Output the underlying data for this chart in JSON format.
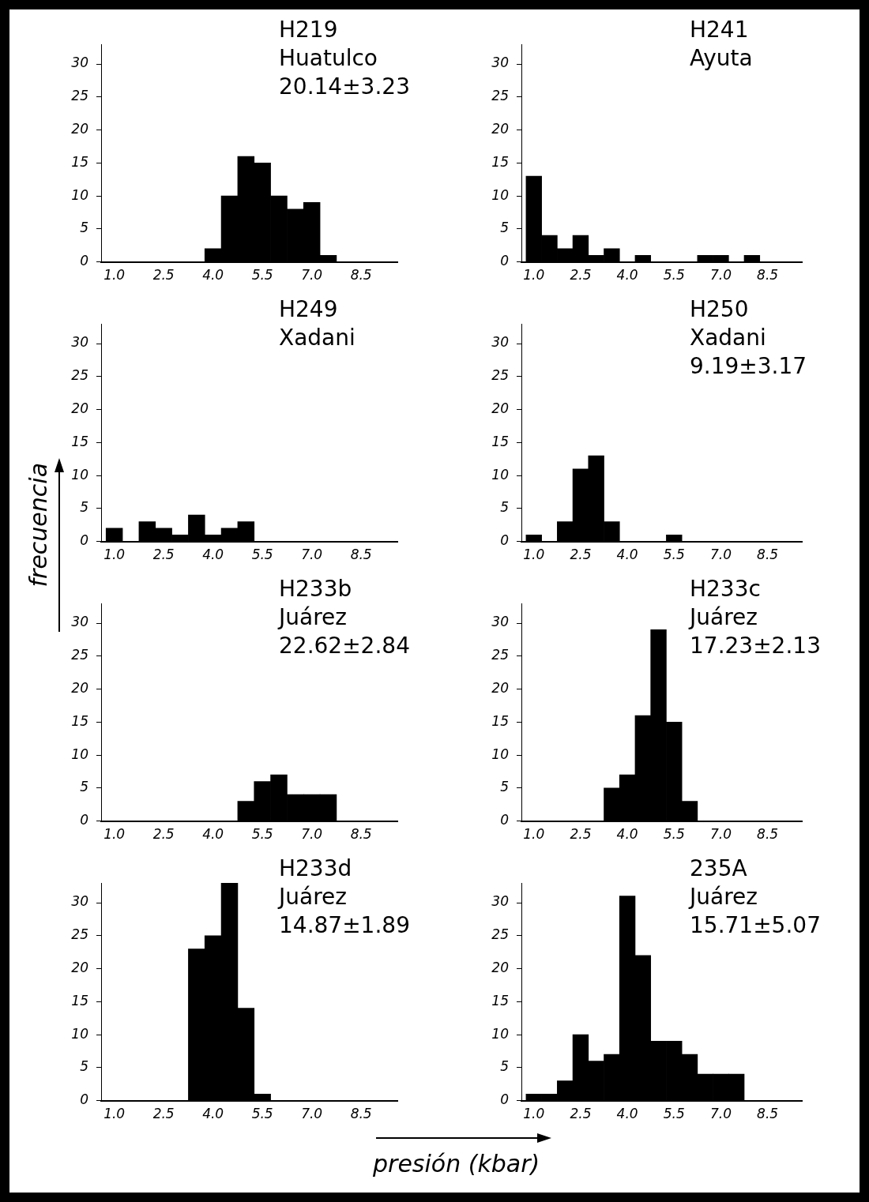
{
  "chart_data": [
    {
      "type": "histogram",
      "annotations": [
        "H219",
        "Huatulco",
        "20.14±3.23"
      ],
      "bins": [
        0.75,
        1.25,
        1.75,
        2.25,
        2.75,
        3.25,
        3.75,
        4.25,
        4.75,
        5.25,
        5.75,
        6.25,
        6.75,
        7.25,
        7.75,
        8.25,
        8.75
      ],
      "values": [
        0,
        0,
        0,
        0,
        0,
        0,
        2,
        10,
        16,
        15,
        10,
        8,
        9,
        1,
        0,
        0
      ],
      "color": "#000000",
      "xlim": [
        0.6,
        9.6
      ],
      "ylim": [
        0,
        33
      ],
      "xticks": [
        {
          "value": 1,
          "label": "1.0"
        },
        {
          "value": 2.5,
          "label": "2.5"
        },
        {
          "value": 4,
          "label": "4.0"
        },
        {
          "value": 5.5,
          "label": "5.5"
        },
        {
          "value": 7,
          "label": "7.0"
        },
        {
          "value": 8.5,
          "label": "8.5"
        }
      ],
      "yticks": [
        0,
        5,
        10,
        15,
        20,
        25,
        30
      ]
    },
    {
      "type": "histogram",
      "annotations": [
        "H241",
        "Ayuta"
      ],
      "bins": [
        0.75,
        1.25,
        1.75,
        2.25,
        2.75,
        3.25,
        3.75,
        4.25,
        4.75,
        5.25,
        5.75,
        6.25,
        6.75,
        7.25,
        7.75,
        8.25,
        8.75
      ],
      "values": [
        13,
        4,
        2,
        4,
        1,
        2,
        0,
        1,
        0,
        0,
        0,
        1,
        1,
        0,
        1,
        0
      ],
      "color": "#000000",
      "xlim": [
        0.6,
        9.6
      ],
      "ylim": [
        0,
        33
      ],
      "xticks": [
        {
          "value": 1,
          "label": "1.0"
        },
        {
          "value": 2.5,
          "label": "2.5"
        },
        {
          "value": 4,
          "label": "4.0"
        },
        {
          "value": 5.5,
          "label": "5.5"
        },
        {
          "value": 7,
          "label": "7.0"
        },
        {
          "value": 8.5,
          "label": "8.5"
        }
      ],
      "yticks": [
        0,
        5,
        10,
        15,
        20,
        25,
        30
      ]
    },
    {
      "type": "histogram",
      "annotations": [
        "H249",
        "Xadani"
      ],
      "ylabel": "frecuencia",
      "bins": [
        0.75,
        1.25,
        1.75,
        2.25,
        2.75,
        3.25,
        3.75,
        4.25,
        4.75,
        5.25,
        5.75,
        6.25,
        6.75,
        7.25,
        7.75,
        8.25,
        8.75
      ],
      "values": [
        2,
        0,
        3,
        2,
        1,
        4,
        1,
        2,
        3,
        0,
        0,
        0,
        0,
        0,
        0,
        0
      ],
      "color": "#000000",
      "xlim": [
        0.6,
        9.6
      ],
      "ylim": [
        0,
        33
      ],
      "xticks": [
        {
          "value": 1,
          "label": "1.0"
        },
        {
          "value": 2.5,
          "label": "2.5"
        },
        {
          "value": 4,
          "label": "4.0"
        },
        {
          "value": 5.5,
          "label": "5.5"
        },
        {
          "value": 7,
          "label": "7.0"
        },
        {
          "value": 8.5,
          "label": "8.5"
        }
      ],
      "yticks": [
        0,
        5,
        10,
        15,
        20,
        25,
        30
      ]
    },
    {
      "type": "histogram",
      "annotations": [
        "H250",
        "Xadani",
        "9.19±3.17"
      ],
      "bins": [
        0.75,
        1.25,
        1.75,
        2.25,
        2.75,
        3.25,
        3.75,
        4.25,
        4.75,
        5.25,
        5.75,
        6.25,
        6.75,
        7.25,
        7.75,
        8.25,
        8.75
      ],
      "values": [
        1,
        0,
        3,
        11,
        13,
        3,
        0,
        0,
        0,
        1,
        0,
        0,
        0,
        0,
        0,
        0
      ],
      "color": "#000000",
      "xlim": [
        0.6,
        9.6
      ],
      "ylim": [
        0,
        33
      ],
      "xticks": [
        {
          "value": 1,
          "label": "1.0"
        },
        {
          "value": 2.5,
          "label": "2.5"
        },
        {
          "value": 4,
          "label": "4.0"
        },
        {
          "value": 5.5,
          "label": "5.5"
        },
        {
          "value": 7,
          "label": "7.0"
        },
        {
          "value": 8.5,
          "label": "8.5"
        }
      ],
      "yticks": [
        0,
        5,
        10,
        15,
        20,
        25,
        30
      ]
    },
    {
      "type": "histogram",
      "annotations": [
        "H233b",
        "Juárez",
        "22.62±2.84"
      ],
      "bins": [
        0.75,
        1.25,
        1.75,
        2.25,
        2.75,
        3.25,
        3.75,
        4.25,
        4.75,
        5.25,
        5.75,
        6.25,
        6.75,
        7.25,
        7.75,
        8.25,
        8.75
      ],
      "values": [
        0,
        0,
        0,
        0,
        0,
        0,
        0,
        0,
        3,
        6,
        7,
        4,
        4,
        4,
        0,
        0
      ],
      "color": "#000000",
      "xlim": [
        0.6,
        9.6
      ],
      "ylim": [
        0,
        33
      ],
      "xticks": [
        {
          "value": 1,
          "label": "1.0"
        },
        {
          "value": 2.5,
          "label": "2.5"
        },
        {
          "value": 4,
          "label": "4.0"
        },
        {
          "value": 5.5,
          "label": "5.5"
        },
        {
          "value": 7,
          "label": "7.0"
        },
        {
          "value": 8.5,
          "label": "8.5"
        }
      ],
      "yticks": [
        0,
        5,
        10,
        15,
        20,
        25,
        30
      ]
    },
    {
      "type": "histogram",
      "annotations": [
        "H233c",
        "Juárez",
        "17.23±2.13"
      ],
      "bins": [
        0.75,
        1.25,
        1.75,
        2.25,
        2.75,
        3.25,
        3.75,
        4.25,
        4.75,
        5.25,
        5.75,
        6.25,
        6.75,
        7.25,
        7.75,
        8.25,
        8.75
      ],
      "values": [
        0,
        0,
        0,
        0,
        0,
        5,
        7,
        16,
        29,
        15,
        3,
        0,
        0,
        0,
        0,
        0
      ],
      "color": "#000000",
      "xlim": [
        0.6,
        9.6
      ],
      "ylim": [
        0,
        33
      ],
      "xticks": [
        {
          "value": 1,
          "label": "1.0"
        },
        {
          "value": 2.5,
          "label": "2.5"
        },
        {
          "value": 4,
          "label": "4.0"
        },
        {
          "value": 5.5,
          "label": "5.5"
        },
        {
          "value": 7,
          "label": "7.0"
        },
        {
          "value": 8.5,
          "label": "8.5"
        }
      ],
      "yticks": [
        0,
        5,
        10,
        15,
        20,
        25,
        30
      ]
    },
    {
      "type": "histogram",
      "annotations": [
        "H233d",
        "Juárez",
        "14.87±1.89"
      ],
      "bins": [
        0.75,
        1.25,
        1.75,
        2.25,
        2.75,
        3.25,
        3.75,
        4.25,
        4.75,
        5.25,
        5.75,
        6.25,
        6.75,
        7.25,
        7.75,
        8.25,
        8.75
      ],
      "values": [
        0,
        0,
        0,
        0,
        0,
        23,
        25,
        33,
        14,
        1,
        0,
        0,
        0,
        0,
        0,
        0
      ],
      "color": "#000000",
      "xlim": [
        0.6,
        9.6
      ],
      "ylim": [
        0,
        33
      ],
      "xticks": [
        {
          "value": 1,
          "label": "1.0"
        },
        {
          "value": 2.5,
          "label": "2.5"
        },
        {
          "value": 4,
          "label": "4.0"
        },
        {
          "value": 5.5,
          "label": "5.5"
        },
        {
          "value": 7,
          "label": "7.0"
        },
        {
          "value": 8.5,
          "label": "8.5"
        }
      ],
      "yticks": [
        0,
        5,
        10,
        15,
        20,
        25,
        30
      ]
    },
    {
      "type": "histogram",
      "annotations": [
        "235A",
        "Juárez",
        "15.71±5.07"
      ],
      "xlabel": "presión (kbar)",
      "bins": [
        0.75,
        1.25,
        1.75,
        2.25,
        2.75,
        3.25,
        3.75,
        4.25,
        4.75,
        5.25,
        5.75,
        6.25,
        6.75,
        7.25,
        7.75,
        8.25,
        8.75
      ],
      "values": [
        1,
        1,
        3,
        10,
        6,
        7,
        31,
        22,
        9,
        9,
        7,
        4,
        4,
        4,
        0,
        0
      ],
      "color": "#000000",
      "xlim": [
        0.6,
        9.6
      ],
      "ylim": [
        0,
        33
      ],
      "xticks": [
        {
          "value": 1,
          "label": "1.0"
        },
        {
          "value": 2.5,
          "label": "2.5"
        },
        {
          "value": 4,
          "label": "4.0"
        },
        {
          "value": 5.5,
          "label": "5.5"
        },
        {
          "value": 7,
          "label": "7.0"
        },
        {
          "value": 8.5,
          "label": "8.5"
        }
      ],
      "yticks": [
        0,
        5,
        10,
        15,
        20,
        25,
        30
      ]
    }
  ]
}
